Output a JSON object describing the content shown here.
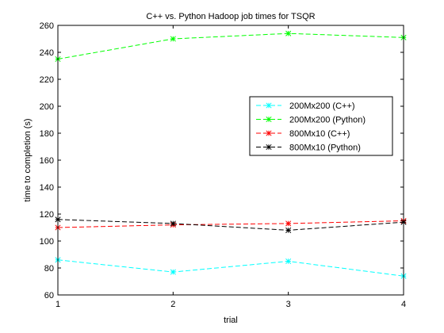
{
  "chart_data": {
    "type": "line",
    "title": "C++ vs. Python Hadoop job times for TSQR",
    "xlabel": "trial",
    "ylabel": "time to completion (s)",
    "xlim": [
      1,
      4
    ],
    "ylim": [
      60,
      260
    ],
    "xticks": [
      1,
      2,
      3,
      4
    ],
    "yticks": [
      60,
      80,
      100,
      120,
      140,
      160,
      180,
      200,
      220,
      240,
      260
    ],
    "x": [
      1,
      2,
      3,
      4
    ],
    "grid": false,
    "legend_position": "right",
    "series": [
      {
        "name": "200Mx200 (C++)",
        "color": "#00ffff",
        "values": [
          86,
          77,
          85,
          74
        ]
      },
      {
        "name": "200Mx200 (Python)",
        "color": "#00ff00",
        "values": [
          235,
          250,
          254,
          251
        ]
      },
      {
        "name": "800Mx10 (C++)",
        "color": "#ff0000",
        "values": [
          110,
          112,
          113,
          115
        ]
      },
      {
        "name": "800Mx10 (Python)",
        "color": "#000000",
        "values": [
          116,
          113,
          108,
          114
        ]
      }
    ]
  }
}
